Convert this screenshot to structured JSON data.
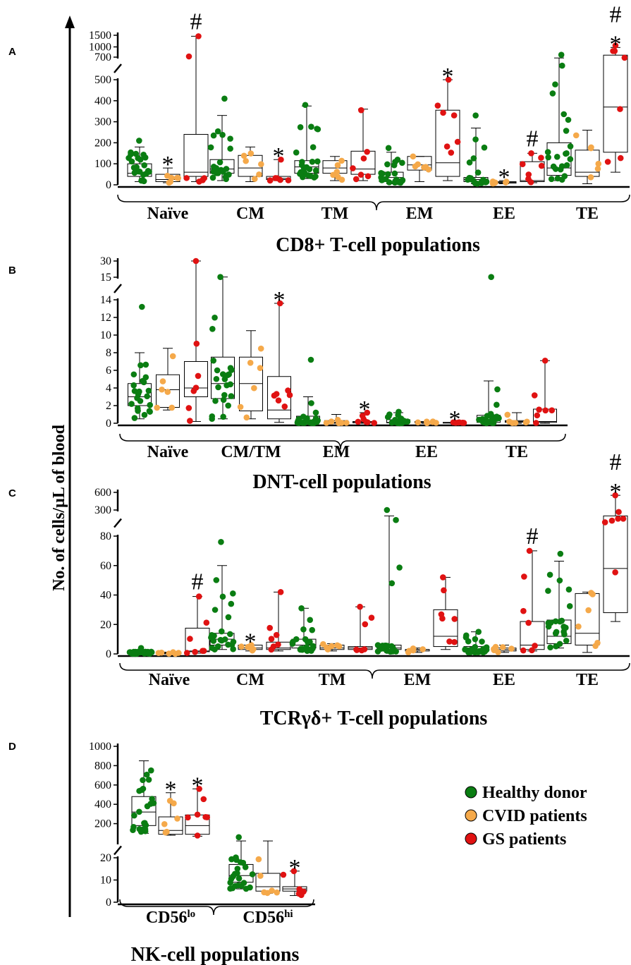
{
  "y_axis_label": "No. of cells/µL of blood",
  "legend": [
    {
      "label": "Healthy donor",
      "color": "#0a7d12"
    },
    {
      "label": "CVID patients",
      "color": "#f5a94a"
    },
    {
      "label": "GS patients",
      "color": "#e01212"
    }
  ],
  "colors": {
    "healthy": "#0a7d12",
    "cvid": "#f5a94a",
    "gs": "#e01212"
  },
  "chart_data": [
    {
      "type": "box",
      "panel": "A",
      "title": "CD8+ T-cell populations",
      "axis": {
        "breaks": [
          {
            "ticks": [
              "0",
              "100",
              "200",
              "300",
              "400",
              "500"
            ],
            "values": [
              0,
              100,
              200,
              300,
              400,
              500
            ]
          },
          {
            "ticks": [
              "700",
              "1000",
              "1500"
            ],
            "values": [
              700,
              1000,
              1500
            ]
          }
        ]
      },
      "categories": [
        "Naïve",
        "CM",
        "TM",
        "EM",
        "EE",
        "TE"
      ],
      "series": [
        {
          "name": "Healthy donor",
          "stats": [
            [
              15,
              40,
              55,
              100,
              180
            ],
            [
              20,
              55,
              75,
              120,
              330
            ],
            [
              30,
              55,
              85,
              115,
              375
            ],
            [
              5,
              15,
              35,
              60,
              155
            ],
            [
              5,
              15,
              25,
              35,
              270
            ],
            [
              20,
              45,
              80,
              200,
              680
            ]
          ],
          "max_points": [
            210,
            410,
            380,
            175,
            330,
            760
          ]
        },
        {
          "name": "CVID patients",
          "stats": [
            [
              10,
              15,
              25,
              50,
              80
            ],
            [
              15,
              40,
              80,
              140,
              180
            ],
            [
              20,
              55,
              80,
              115,
              135
            ],
            [
              15,
              70,
              95,
              135,
              135
            ],
            [
              5,
              8,
              12,
              15,
              20
            ],
            [
              5,
              40,
              60,
              165,
              260
            ]
          ]
        },
        {
          "name": "GS patients",
          "stats": [
            [
              15,
              40,
              60,
              240,
              1450
            ],
            [
              20,
              25,
              30,
              40,
              120
            ],
            [
              20,
              50,
              75,
              160,
              360
            ],
            [
              20,
              40,
              105,
              355,
              500
            ],
            [
              10,
              15,
              20,
              110,
              150
            ],
            [
              60,
              155,
              370,
              750,
              980
            ]
          ],
          "max_points": [
            1450,
            120,
            355,
            500,
            150,
            1050
          ]
        }
      ],
      "annotations": [
        {
          "text": "#",
          "category": "Naïve",
          "series": "GS patients"
        },
        {
          "text": "*",
          "category": "Naïve",
          "series": "CVID patients"
        },
        {
          "text": "*",
          "category": "CM",
          "series": "GS patients"
        },
        {
          "text": "*",
          "category": "EM",
          "series": "GS patients"
        },
        {
          "text": "*",
          "category": "EE",
          "series": "CVID patients"
        },
        {
          "text": "#",
          "category": "EE",
          "series": "GS patients"
        },
        {
          "text": "#",
          "category": "TE",
          "series": "GS patients"
        },
        {
          "text": "*",
          "category": "TE",
          "series": "GS patients"
        }
      ]
    },
    {
      "type": "box",
      "panel": "B",
      "title": "DNT-cell populations",
      "axis": {
        "breaks": [
          {
            "ticks": [
              "0",
              "2",
              "4",
              "6",
              "8",
              "10",
              "12",
              "14"
            ],
            "values": [
              0,
              2,
              4,
              6,
              8,
              10,
              12,
              14
            ]
          },
          {
            "ticks": [
              "15",
              "30"
            ],
            "values": [
              15,
              30
            ]
          }
        ]
      },
      "categories": [
        "Naïve",
        "CM/TM",
        "EM",
        "EE",
        "TE"
      ],
      "series": [
        {
          "name": "Healthy donor",
          "stats": [
            [
              0.5,
              2,
              3,
              4.5,
              8
            ],
            [
              0.5,
              2.8,
              4.5,
              7.5,
              15.2
            ],
            [
              0,
              0.1,
              0.3,
              0.8,
              3
            ],
            [
              0,
              0.05,
              0.1,
              0.4,
              1.2
            ],
            [
              0,
              0.1,
              0.3,
              0.9,
              4.8
            ]
          ],
          "max_points": [
            13.2,
            15.2,
            7.2,
            1.3,
            15.2
          ]
        },
        {
          "name": "CVID patients",
          "stats": [
            [
              1.5,
              1.8,
              3.8,
              5.5,
              8.5
            ],
            [
              0.5,
              1.4,
              4.5,
              7.5,
              10.5
            ],
            [
              0,
              0.05,
              0.1,
              0.3,
              1
            ],
            [
              0,
              0.05,
              0.1,
              0.2,
              0.2
            ],
            [
              0,
              0.1,
              0.2,
              0.3,
              1.2
            ]
          ]
        },
        {
          "name": "GS patients",
          "stats": [
            [
              0.2,
              3,
              4,
              7,
              30
            ],
            [
              0.1,
              0.5,
              1.5,
              5.3,
              13.6
            ],
            [
              0,
              0.05,
              0.1,
              0.2,
              1.2
            ],
            [
              0,
              0.05,
              0.05,
              0.1,
              0.1
            ],
            [
              0,
              0.1,
              0.2,
              1.6,
              7.1
            ]
          ],
          "max_points": [
            30,
            13.6,
            1.2,
            0.1,
            7.1
          ]
        }
      ],
      "annotations": [
        {
          "text": "*",
          "category": "CM/TM",
          "series": "GS patients"
        },
        {
          "text": "*",
          "category": "EM",
          "series": "GS patients"
        },
        {
          "text": "*",
          "category": "EE",
          "series": "GS patients"
        }
      ]
    },
    {
      "type": "box",
      "panel": "C",
      "title": "TCRγδ+ T-cell populations",
      "axis": {
        "breaks": [
          {
            "ticks": [
              "0",
              "20",
              "40",
              "60",
              "80"
            ],
            "values": [
              0,
              20,
              40,
              60,
              80
            ]
          },
          {
            "ticks": [
              "300",
              "600"
            ],
            "values": [
              300,
              600
            ]
          }
        ]
      },
      "categories": [
        "Naïve",
        "CM",
        "TM",
        "EM",
        "EE",
        "TE"
      ],
      "series": [
        {
          "name": "Healthy donor",
          "stats": [
            [
              0,
              0.5,
              1,
              1.5,
              3
            ],
            [
              3,
              6,
              10,
              14,
              60
            ],
            [
              2,
              4,
              6,
              10,
              31
            ],
            [
              1,
              3,
              4,
              6,
              200
            ],
            [
              1,
              2,
              3,
              5,
              15
            ],
            [
              4,
              7,
              12,
              23,
              63
            ]
          ],
          "max_points": [
            4,
            76,
            31,
            300,
            15,
            68
          ]
        },
        {
          "name": "CVID patients",
          "stats": [
            [
              0,
              0.3,
              0.5,
              1,
              1.2
            ],
            [
              2,
              3,
              4,
              6,
              6
            ],
            [
              2,
              3,
              4,
              6,
              7
            ],
            [
              1,
              2,
              3,
              3,
              4
            ],
            [
              1,
              2,
              3,
              4,
              6
            ],
            [
              1,
              6,
              14,
              41,
              42
            ]
          ]
        },
        {
          "name": "GS patients",
          "stats": [
            [
              0.5,
              1.5,
              2,
              17.5,
              39
            ],
            [
              2,
              3,
              4,
              8,
              42
            ],
            [
              2,
              3,
              4,
              5,
              32
            ],
            [
              3,
              5,
              12,
              30,
              52
            ],
            [
              2,
              3,
              6,
              22,
              70
            ],
            [
              22,
              28,
              58,
              200,
              550
            ]
          ],
          "max_points": [
            39,
            42,
            32,
            52,
            70,
            550
          ]
        }
      ],
      "annotations": [
        {
          "text": "#",
          "category": "Naïve",
          "series": "GS patients"
        },
        {
          "text": "*",
          "category": "CM",
          "series": "CVID patients"
        },
        {
          "text": "#",
          "category": "EE",
          "series": "GS patients"
        },
        {
          "text": "#",
          "category": "TE",
          "series": "GS patients"
        },
        {
          "text": "*",
          "category": "TE",
          "series": "GS patients"
        }
      ]
    },
    {
      "type": "box",
      "panel": "D",
      "title": "NK-cell populations",
      "axis": {
        "breaks": [
          {
            "ticks": [
              "0",
              "10",
              "20"
            ],
            "values": [
              0,
              10,
              20
            ]
          },
          {
            "ticks": [
              "200",
              "400",
              "600",
              "800",
              "1000"
            ],
            "values": [
              200,
              400,
              600,
              800,
              1000
            ]
          }
        ]
      },
      "categories": [
        {
          "main": "CD56",
          "sup": "lo"
        },
        {
          "main": "CD56",
          "sup": "hi"
        }
      ],
      "series": [
        {
          "name": "Healthy donor",
          "stats": [
            [
              100,
              180,
              320,
              480,
              850
            ],
            [
              6,
              9,
              12,
              17,
              21
            ]
          ],
          "max_points": [
            550,
            60
          ]
        },
        {
          "name": "CVID patients",
          "stats": [
            [
              80,
              90,
              130,
              270,
              520
            ],
            [
              4,
              5,
              7,
              13,
              21
            ]
          ]
        },
        {
          "name": "GS patients",
          "stats": [
            [
              70,
              90,
              180,
              290,
              560
            ],
            [
              3,
              5,
              6,
              7,
              14
            ]
          ],
          "max_points": [
            560,
            14
          ]
        }
      ],
      "annotations": [
        {
          "text": "*",
          "category": "CD56lo",
          "series": "CVID patients"
        },
        {
          "text": "*",
          "category": "CD56lo",
          "series": "GS patients"
        },
        {
          "text": "*",
          "category": "CD56hi",
          "series": "GS patients"
        }
      ]
    }
  ]
}
